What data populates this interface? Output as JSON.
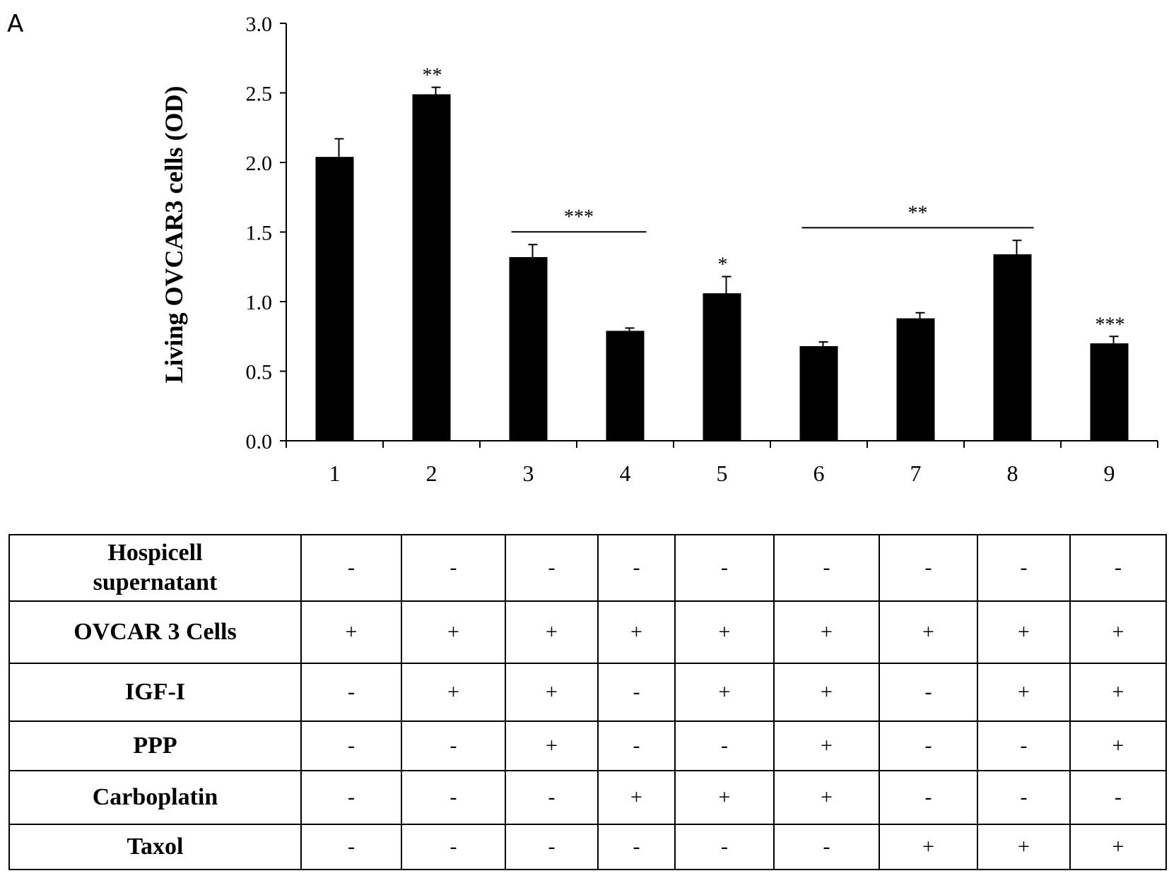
{
  "panel_label": "A",
  "chart_data": {
    "type": "bar",
    "ylabel": "Living OVCAR3 cells (OD)",
    "xlabel": "",
    "ylim": [
      0,
      3.0
    ],
    "yticks": [
      "0.0",
      "0.5",
      "1.0",
      "1.5",
      "2.0",
      "2.5",
      "3.0"
    ],
    "categories": [
      "1",
      "2",
      "3",
      "4",
      "5",
      "6",
      "7",
      "8",
      "9"
    ],
    "values": [
      2.04,
      2.49,
      1.32,
      0.79,
      1.06,
      0.68,
      0.88,
      1.34,
      0.7
    ],
    "errors": [
      0.13,
      0.05,
      0.09,
      0.02,
      0.12,
      0.03,
      0.04,
      0.1,
      0.05
    ],
    "bar_color": "#000000",
    "significance": [
      {
        "category": "2",
        "label": "**"
      },
      {
        "category": "5",
        "label": "*"
      },
      {
        "category": "9",
        "label": "***"
      }
    ],
    "brackets": [
      {
        "from": "3",
        "to": "4",
        "label": "***"
      },
      {
        "from": "6",
        "to": "8",
        "label": "**"
      }
    ]
  },
  "conditions": [
    {
      "label": "Hospicell supernatant",
      "cells": [
        "-",
        "-",
        "-",
        "-",
        "-",
        "-",
        "-",
        "-",
        "-"
      ]
    },
    {
      "label": "OVCAR 3 Cells",
      "cells": [
        "+",
        "+",
        "+",
        "+",
        "+",
        "+",
        "+",
        "+",
        "+"
      ]
    },
    {
      "label": "IGF-I",
      "cells": [
        "-",
        "+",
        "+",
        "-",
        "+",
        "+",
        "-",
        "+",
        "+"
      ]
    },
    {
      "label": "PPP",
      "cells": [
        "-",
        "-",
        "+",
        "-",
        "-",
        "+",
        "-",
        "-",
        "+"
      ]
    },
    {
      "label": "Carboplatin",
      "cells": [
        "-",
        "-",
        "-",
        "+",
        "+",
        "+",
        "-",
        "-",
        "-"
      ]
    },
    {
      "label": "Taxol",
      "cells": [
        "-",
        "-",
        "-",
        "-",
        "-",
        "-",
        "+",
        "+",
        "+"
      ]
    }
  ]
}
